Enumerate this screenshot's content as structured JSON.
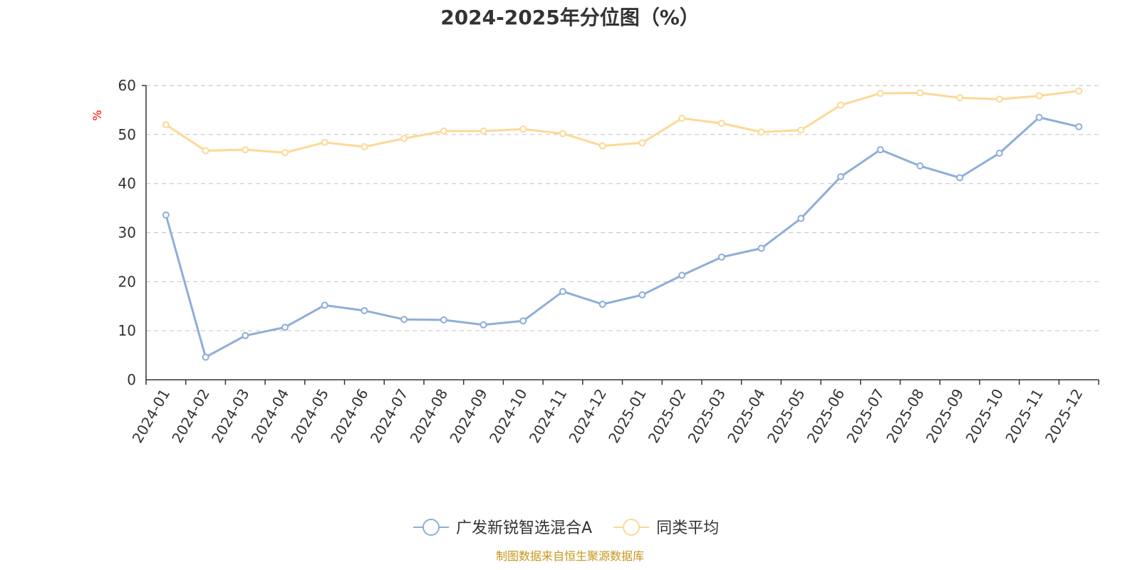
{
  "chart_data": {
    "type": "line",
    "title": "2024-2025年分位图（%）",
    "ylabel": "%",
    "ylim": [
      0,
      60
    ],
    "yticks": [
      0,
      10,
      20,
      30,
      40,
      50,
      60
    ],
    "grid": true,
    "legend_position": "bottom",
    "categories": [
      "2024-01",
      "2024-02",
      "2024-03",
      "2024-04",
      "2024-05",
      "2024-06",
      "2024-07",
      "2024-08",
      "2024-09",
      "2024-10",
      "2024-11",
      "2024-12",
      "2025-01",
      "2025-02",
      "2025-03",
      "2025-04",
      "2025-05",
      "2025-06",
      "2025-07",
      "2025-08",
      "2025-09",
      "2025-10",
      "2025-11",
      "2025-12"
    ],
    "series": [
      {
        "name": "广发新锐智选混合A",
        "color": "#8eaed8",
        "values": [
          33.6,
          4.6,
          9.0,
          10.7,
          15.2,
          14.1,
          12.3,
          12.2,
          11.2,
          12.0,
          18.0,
          15.4,
          17.3,
          21.3,
          25.0,
          26.8,
          32.9,
          41.4,
          46.9,
          43.6,
          41.2,
          46.2,
          53.5,
          51.6
        ]
      },
      {
        "name": "同类平均",
        "color": "#fcd996",
        "values": [
          52.0,
          46.7,
          46.9,
          46.3,
          48.4,
          47.5,
          49.2,
          50.7,
          50.7,
          51.1,
          50.2,
          47.7,
          48.3,
          53.3,
          52.3,
          50.5,
          50.9,
          56.0,
          58.4,
          58.5,
          57.5,
          57.2,
          57.9,
          58.9
        ]
      }
    ],
    "source": "制图数据来自恒生聚源数据库"
  }
}
